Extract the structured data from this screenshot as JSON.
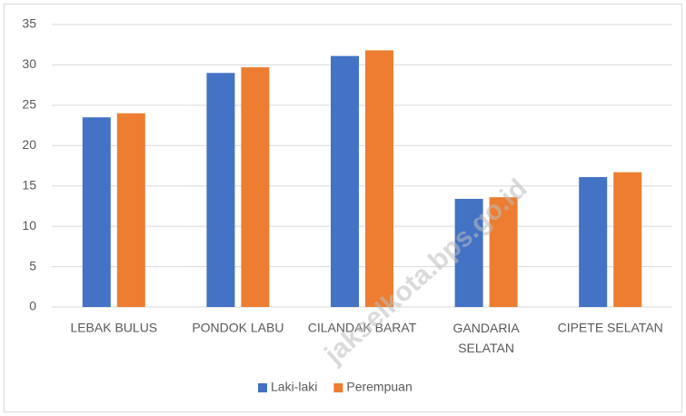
{
  "chart_data": {
    "type": "bar",
    "categories": [
      "LEBAK BULUS",
      "PONDOK LABU",
      "CILANDAK BARAT",
      "GANDARIA SELATAN",
      "CIPETE SELATAN"
    ],
    "series": [
      {
        "name": "Laki-laki",
        "color": "#4472c4",
        "values": [
          23.5,
          29.0,
          31.1,
          13.4,
          16.1
        ]
      },
      {
        "name": "Perempuan",
        "color": "#ed7d31",
        "values": [
          24.0,
          29.7,
          31.8,
          13.6,
          16.7
        ]
      }
    ],
    "ylim": [
      0,
      35
    ],
    "yticks": [
      0,
      5,
      10,
      15,
      20,
      25,
      30,
      35
    ],
    "grid": true,
    "legend": "bottom",
    "watermark": "jakselkota.bps.go.id"
  }
}
